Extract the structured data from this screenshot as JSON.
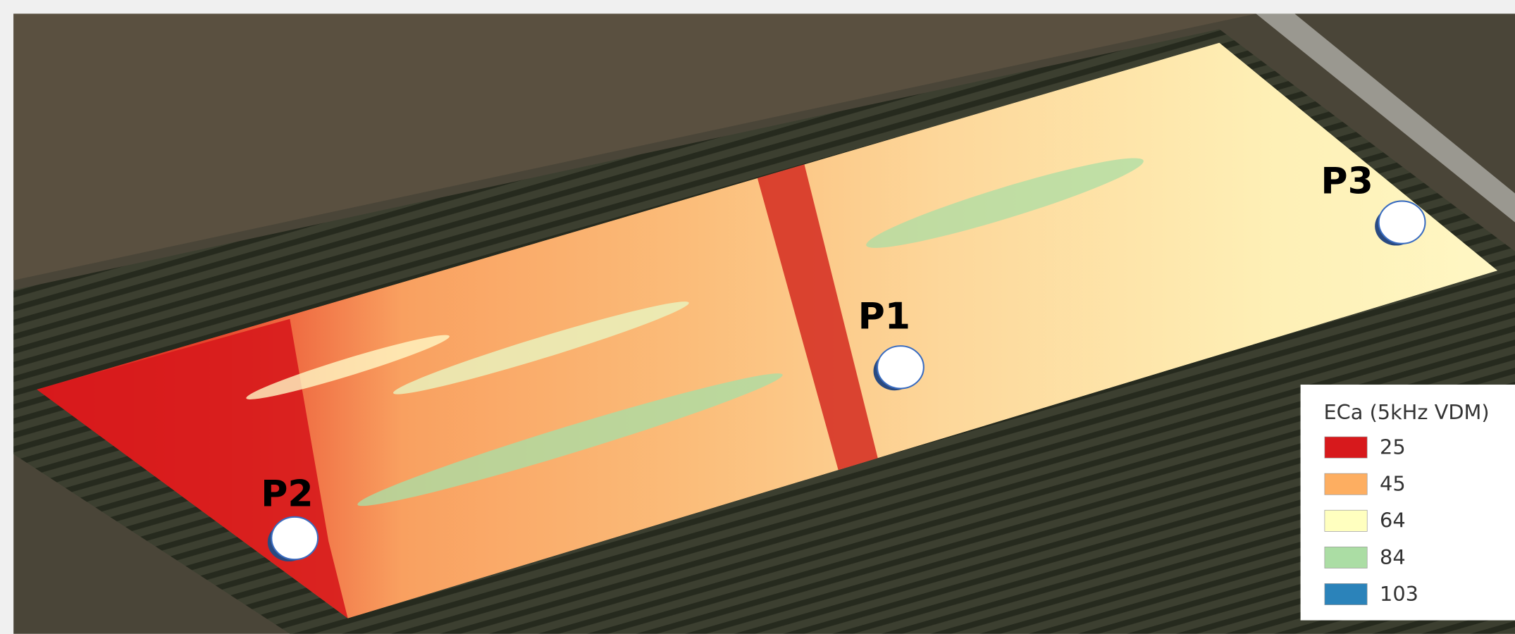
{
  "legend": {
    "title": "ECa (5kHz VDM)",
    "items": [
      {
        "label": "25",
        "color": "#d7191c"
      },
      {
        "label": "45",
        "color": "#fdae61"
      },
      {
        "label": "64",
        "color": "#ffffbf"
      },
      {
        "label": "84",
        "color": "#abdda4"
      },
      {
        "label": "103",
        "color": "#2b83ba"
      }
    ]
  },
  "points": [
    {
      "label": "P1"
    },
    {
      "label": "P2"
    },
    {
      "label": "P3"
    }
  ]
}
